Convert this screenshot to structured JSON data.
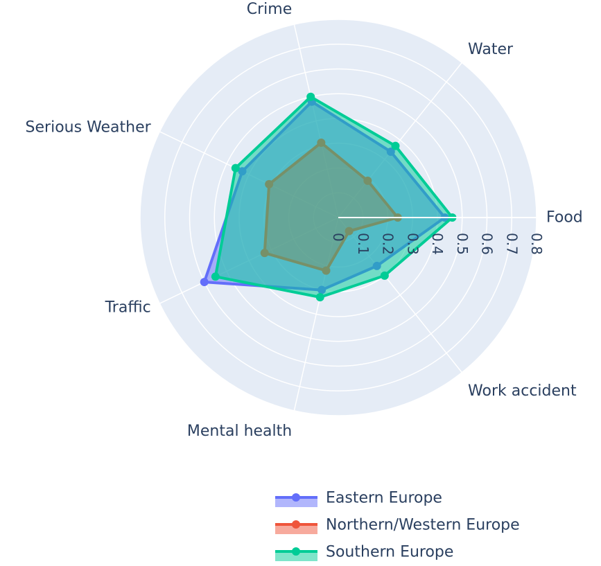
{
  "chart_data": {
    "type": "radar",
    "categories": [
      "Food",
      "Water",
      "Crime",
      "Serious Weather",
      "Traffic",
      "Mental health",
      "Work accident"
    ],
    "radial_ticks": [
      "0",
      "0.1",
      "0.2",
      "0.3",
      "0.4",
      "0.5",
      "0.6",
      "0.7",
      "0.8"
    ],
    "radial_range": [
      0,
      0.8
    ],
    "legend_position": "bottom-right",
    "series": [
      {
        "name": "Eastern Europe",
        "color": "#636efa",
        "values": [
          0.43,
          0.34,
          0.48,
          0.43,
          0.6,
          0.3,
          0.25
        ]
      },
      {
        "name": "Northern/Western Europe",
        "color": "#ef553b",
        "values": [
          0.24,
          0.19,
          0.31,
          0.31,
          0.33,
          0.22,
          0.07
        ]
      },
      {
        "name": "Southern Europe",
        "color": "#00cc96",
        "values": [
          0.46,
          0.37,
          0.5,
          0.46,
          0.55,
          0.33,
          0.3
        ]
      }
    ]
  }
}
